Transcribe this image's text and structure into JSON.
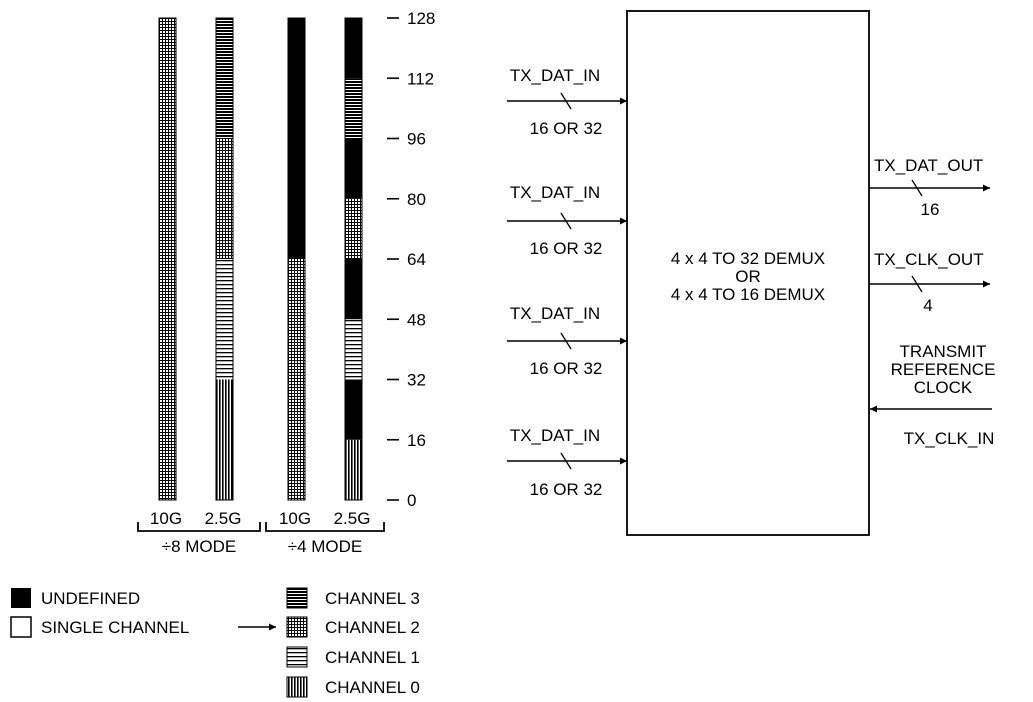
{
  "scale": {
    "ticks": [
      "128",
      "112",
      "96",
      "80",
      "64",
      "48",
      "32",
      "16",
      "0"
    ],
    "max": 128
  },
  "bars": [
    {
      "label": "10G",
      "segments": [
        {
          "from": 0,
          "to": 128,
          "fill": "grid"
        }
      ]
    },
    {
      "label": "2.5G",
      "segments": [
        {
          "from": 0,
          "to": 32,
          "fill": "vert"
        },
        {
          "from": 32,
          "to": 64,
          "fill": "horz"
        },
        {
          "from": 64,
          "to": 96,
          "fill": "grid"
        },
        {
          "from": 96,
          "to": 128,
          "fill": "dense"
        }
      ]
    },
    {
      "label": "10G",
      "segments": [
        {
          "from": 0,
          "to": 64,
          "fill": "grid"
        },
        {
          "from": 64,
          "to": 128,
          "fill": "black"
        }
      ]
    },
    {
      "label": "2.5G",
      "segments": [
        {
          "from": 0,
          "to": 16,
          "fill": "vert"
        },
        {
          "from": 16,
          "to": 32,
          "fill": "black"
        },
        {
          "from": 32,
          "to": 48,
          "fill": "horz"
        },
        {
          "from": 48,
          "to": 64,
          "fill": "black"
        },
        {
          "from": 64,
          "to": 80,
          "fill": "grid"
        },
        {
          "from": 80,
          "to": 96,
          "fill": "black"
        },
        {
          "from": 96,
          "to": 112,
          "fill": "dense"
        },
        {
          "from": 112,
          "to": 128,
          "fill": "black"
        }
      ]
    }
  ],
  "modes": [
    "÷8 MODE",
    "÷4 MODE"
  ],
  "legend": {
    "undefined": "UNDEFINED",
    "single_channel": "SINGLE CHANNEL",
    "channel_3": "CHANNEL 3",
    "channel_2": "CHANNEL 2",
    "channel_1": "CHANNEL 1",
    "channel_0": "CHANNEL 0"
  },
  "block": {
    "line1": "4 x 4 TO 32 DEMUX",
    "line2": "OR",
    "line3": "4 x 4 TO 16 DEMUX"
  },
  "inputs": [
    {
      "name": "TX_DAT_IN",
      "width": "16 OR 32"
    },
    {
      "name": "TX_DAT_IN",
      "width": "16 OR 32"
    },
    {
      "name": "TX_DAT_IN",
      "width": "16 OR 32"
    },
    {
      "name": "TX_DAT_IN",
      "width": "16 OR 32"
    }
  ],
  "outputs": [
    {
      "name": "TX_DAT_OUT",
      "width": "16"
    },
    {
      "name": "TX_CLK_OUT",
      "width": "4"
    }
  ],
  "ref_clock": {
    "line1": "TRANSMIT",
    "line2": "REFERENCE",
    "line3": "CLOCK",
    "signal": "TX_CLK_IN"
  }
}
